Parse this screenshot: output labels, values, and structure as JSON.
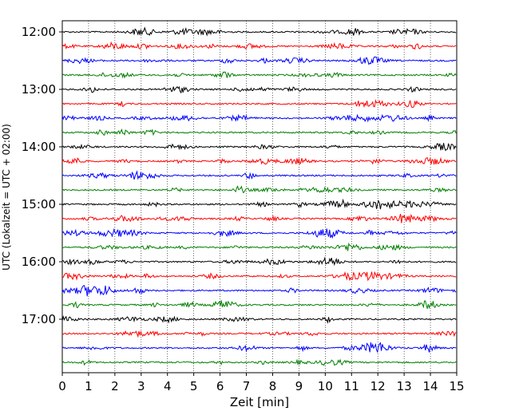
{
  "chart_data": {
    "type": "line",
    "xlabel": "Zeit  [min]",
    "ylabel": "UTC (Lokalzeit = UTC + 02:00)",
    "xlim": [
      0,
      15
    ],
    "x_ticks": [
      0,
      1,
      2,
      3,
      4,
      5,
      6,
      7,
      8,
      9,
      10,
      11,
      12,
      13,
      14,
      15
    ],
    "y_ticks": [
      {
        "label": "12:00",
        "trace": 0
      },
      {
        "label": "13:00",
        "trace": 4
      },
      {
        "label": "14:00",
        "trace": 8
      },
      {
        "label": "15:00",
        "trace": 12
      },
      {
        "label": "16:00",
        "trace": 16
      },
      {
        "label": "17:00",
        "trace": 20
      }
    ],
    "trace_count": 24,
    "trace_interval_min": 15,
    "trace_colors": [
      "#000000",
      "#ff0000",
      "#0000ff",
      "#008000"
    ],
    "grid": "vertical dotted at each minute"
  }
}
